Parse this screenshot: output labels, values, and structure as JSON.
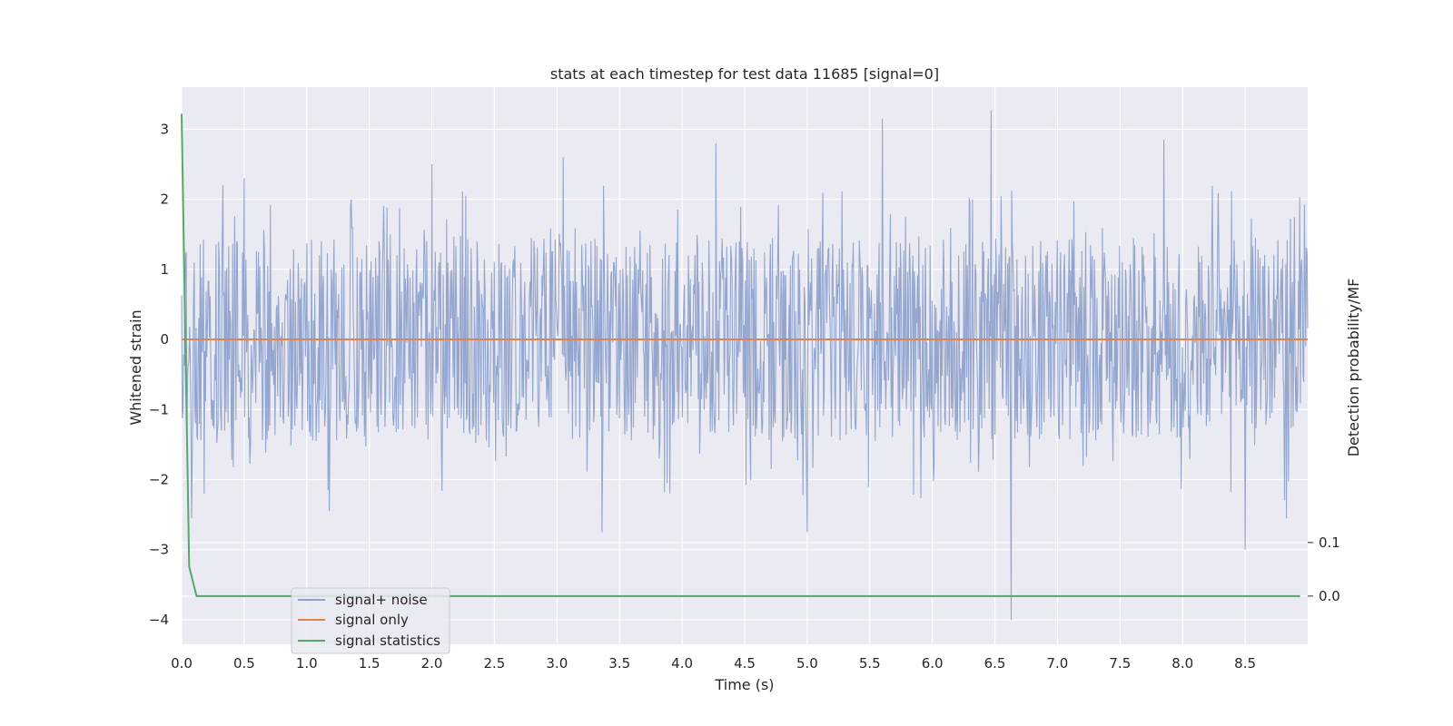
{
  "chart_data": {
    "type": "line",
    "title": "stats at each timestep for test data 11685 [signal=0]",
    "xlabel": "Time (s)",
    "ylabel": "Whitened strain",
    "y2label": "Detection probability/MF",
    "xlim": [
      0.0,
      9.0
    ],
    "ylim": [
      -4.35,
      3.6
    ],
    "y2lim": [
      -0.09,
      0.95
    ],
    "grid": true,
    "legend_position": "lower-left",
    "x_ticks": [
      0.0,
      0.5,
      1.0,
      1.5,
      2.0,
      2.5,
      3.0,
      3.5,
      4.0,
      4.5,
      5.0,
      5.5,
      6.0,
      6.5,
      7.0,
      7.5,
      8.0,
      8.5
    ],
    "x_tick_labels": [
      "0.0",
      "0.5",
      "1.0",
      "1.5",
      "2.0",
      "2.5",
      "3.0",
      "3.5",
      "4.0",
      "4.5",
      "5.0",
      "5.5",
      "6.0",
      "6.5",
      "7.0",
      "7.5",
      "8.0",
      "8.5"
    ],
    "y_ticks": [
      3,
      2,
      1,
      0,
      -1,
      -2,
      -3,
      -4
    ],
    "y_tick_labels": [
      "3",
      "2",
      "1",
      "0",
      "−1",
      "−2",
      "−3",
      "−4"
    ],
    "y2_ticks": [
      0.1,
      0.0
    ],
    "y2_tick_labels": [
      "0.1",
      "0.0"
    ],
    "noise_envelope": {
      "typical_upper": 1.3,
      "typical_lower": -1.3,
      "peaks": [
        [
          0.33,
          2.2
        ],
        [
          0.5,
          2.3
        ],
        [
          2.0,
          2.5
        ],
        [
          3.05,
          2.6
        ],
        [
          4.27,
          2.8
        ],
        [
          5.6,
          3.15
        ],
        [
          6.47,
          3.27
        ],
        [
          7.85,
          2.85
        ]
      ],
      "troughs": [
        [
          0.08,
          -2.55
        ],
        [
          1.18,
          -2.45
        ],
        [
          3.36,
          -2.75
        ],
        [
          5.0,
          -2.75
        ],
        [
          6.63,
          -4.0
        ],
        [
          8.5,
          -3.0
        ],
        [
          8.83,
          -2.55
        ]
      ]
    },
    "series": [
      {
        "name": "signal+ noise",
        "color": "#8fa2cc",
        "axis": "left",
        "x": [
          0.0,
          9.0
        ],
        "values": [
          0.0,
          0.0
        ]
      },
      {
        "name": "signal only",
        "color": "#dd8452",
        "axis": "left",
        "x": [
          0.0,
          9.0
        ],
        "values": [
          0.0,
          0.0
        ]
      },
      {
        "name": "signal statistics",
        "color": "#55a868",
        "axis": "right",
        "x": [
          0.0,
          0.06,
          0.12,
          8.94
        ],
        "values": [
          0.9,
          0.055,
          0.0,
          0.0
        ]
      }
    ]
  }
}
